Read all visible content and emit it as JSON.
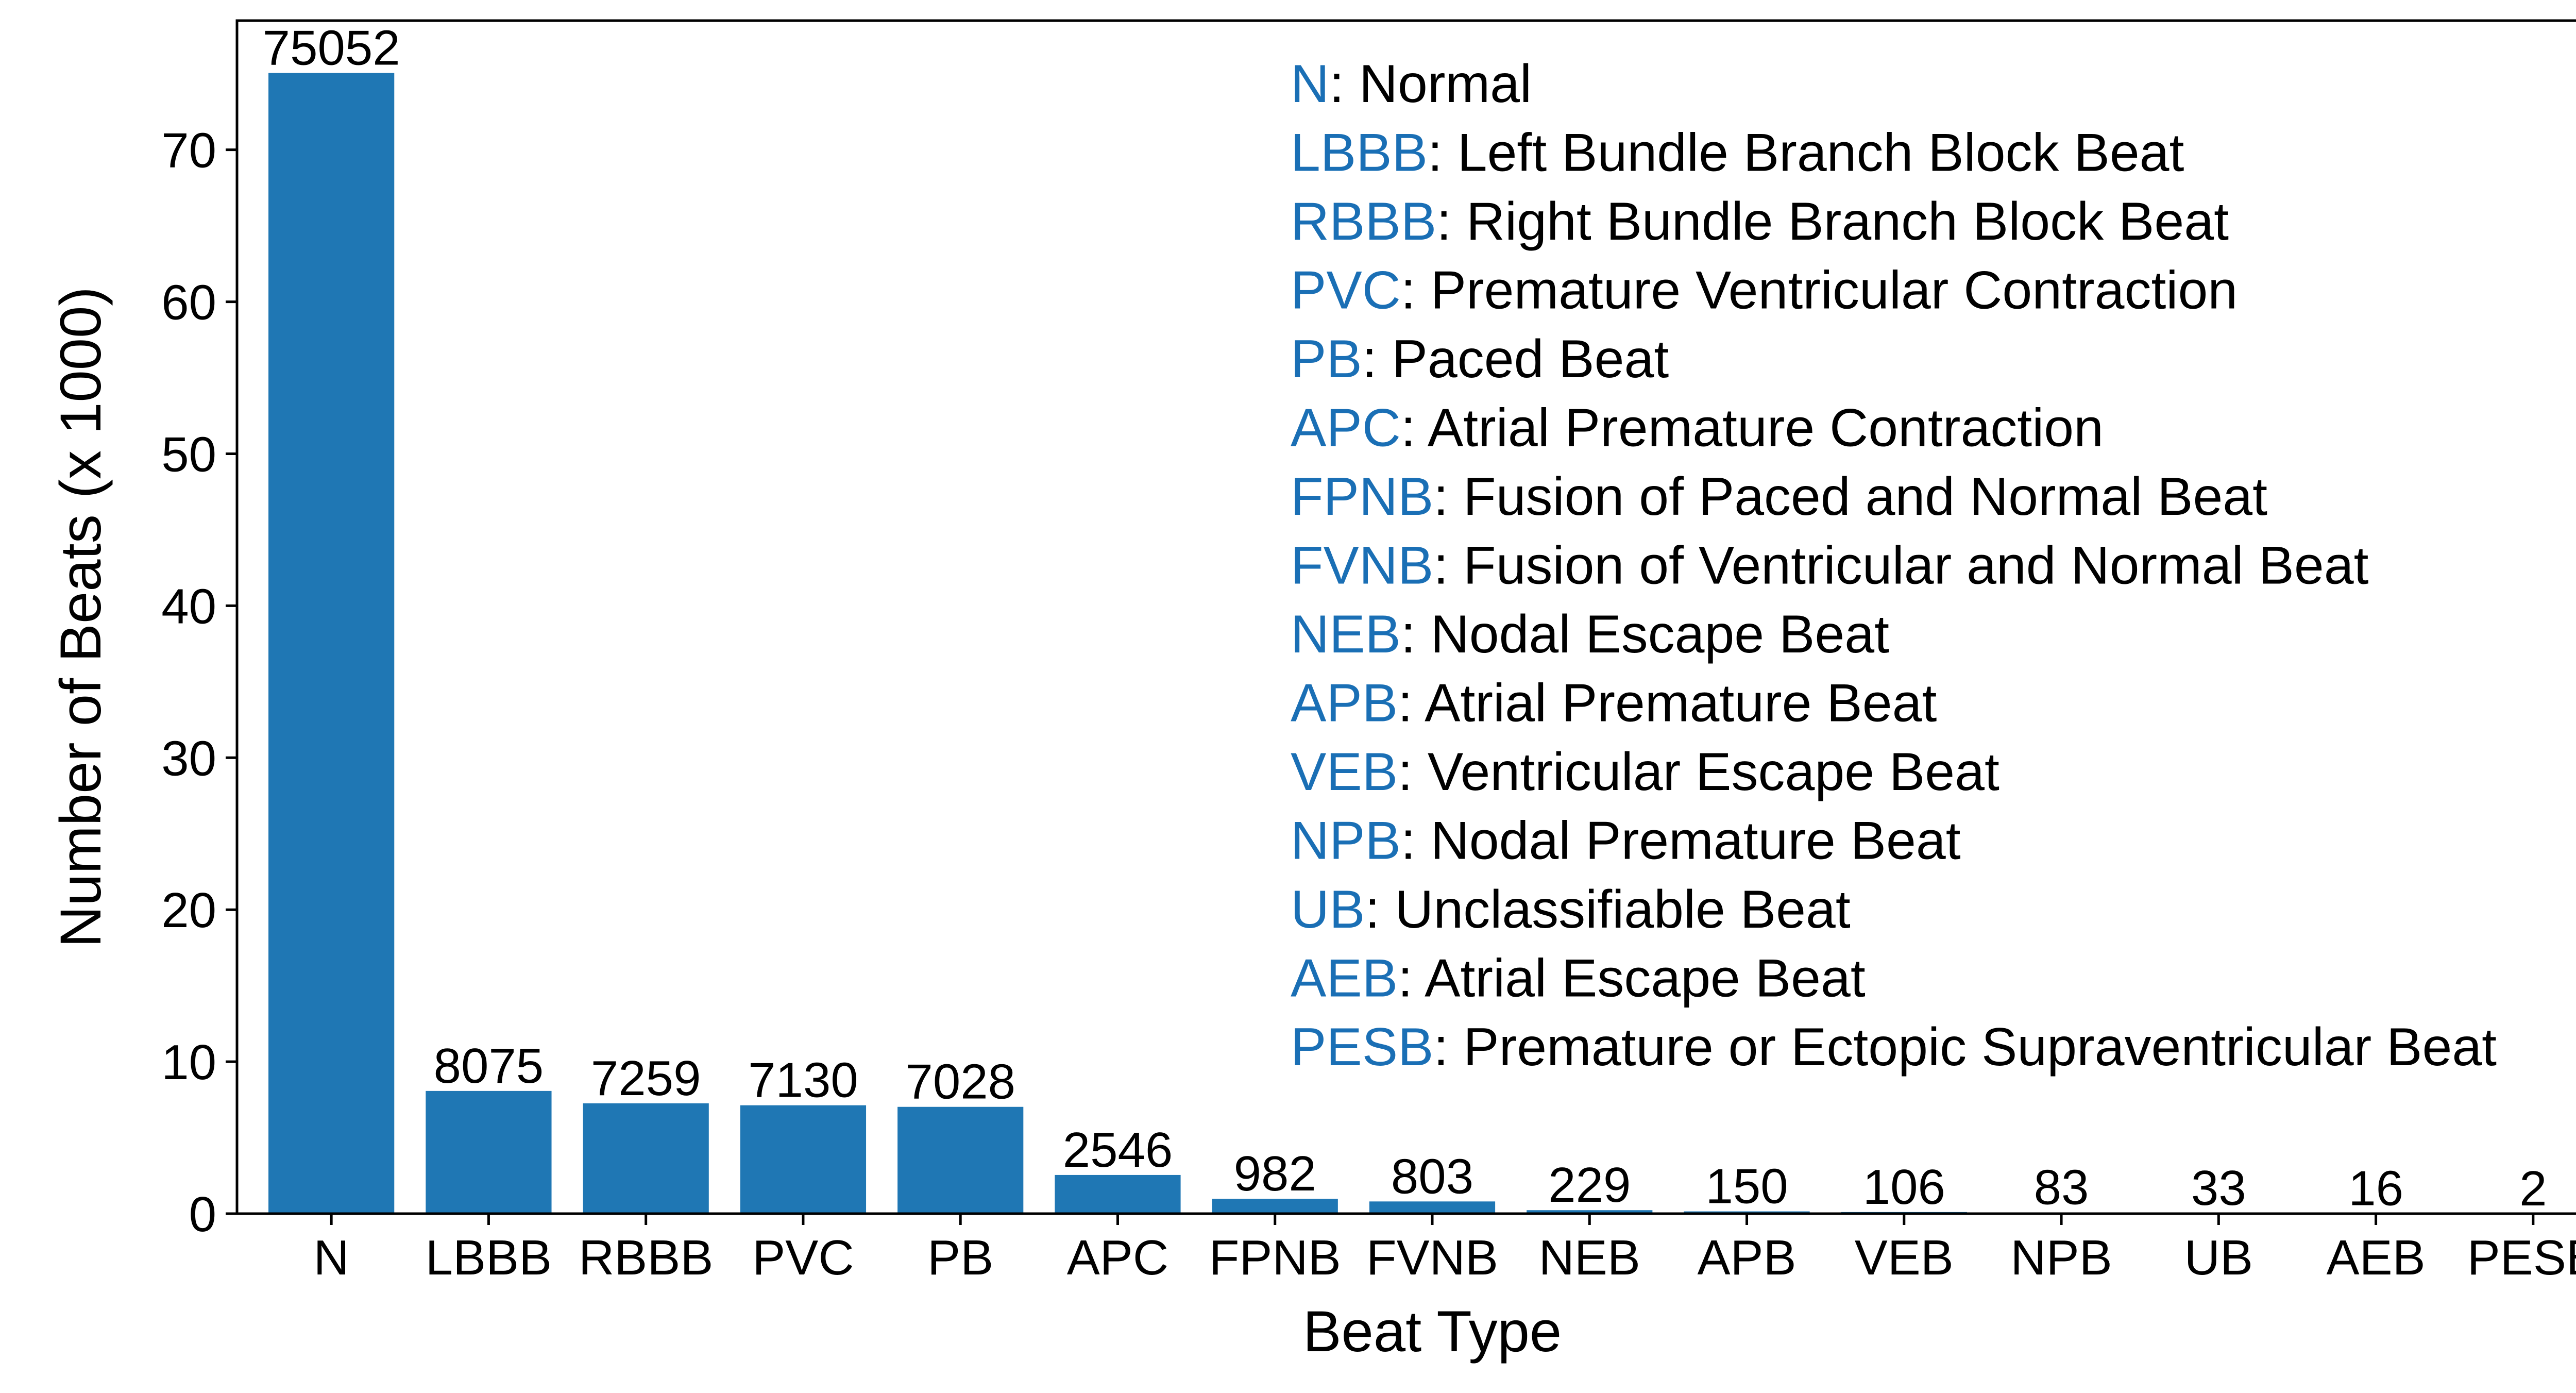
{
  "chart_data": {
    "type": "bar",
    "xlabel": "Beat Type",
    "ylabel": "Number of Beats (x 1000)",
    "ylim": [
      0,
      78.5
    ],
    "yticks": [
      0,
      10,
      20,
      30,
      40,
      50,
      60,
      70
    ],
    "grid": false,
    "bar_color": "#1f77b4",
    "categories": [
      "N",
      "LBBB",
      "RBBB",
      "PVC",
      "PB",
      "APC",
      "FPNB",
      "FVNB",
      "NEB",
      "APB",
      "VEB",
      "NPB",
      "UB",
      "AEB",
      "PESB"
    ],
    "values": [
      75052,
      8075,
      7259,
      7130,
      7028,
      2546,
      982,
      803,
      229,
      150,
      106,
      83,
      33,
      16,
      2
    ],
    "value_labels": [
      "75052",
      "8075",
      "7259",
      "7130",
      "7028",
      "2546",
      "982",
      "803",
      "229",
      "150",
      "106",
      "83",
      "33",
      "16",
      "2"
    ],
    "legend": {
      "placement": "top-right",
      "abbr_color": "#1a6fb5",
      "entries": [
        {
          "abbr": "N",
          "text": ": Normal"
        },
        {
          "abbr": "LBBB",
          "text": ": Left Bundle Branch Block Beat"
        },
        {
          "abbr": "RBBB",
          "text": ": Right Bundle Branch Block Beat"
        },
        {
          "abbr": "PVC",
          "text": ": Premature Ventricular Contraction"
        },
        {
          "abbr": "PB",
          "text": ": Paced Beat"
        },
        {
          "abbr": "APC",
          "text": ": Atrial Premature Contraction"
        },
        {
          "abbr": "FPNB",
          "text": ": Fusion of Paced and Normal Beat"
        },
        {
          "abbr": "FVNB",
          "text": ": Fusion of Ventricular and Normal Beat"
        },
        {
          "abbr": "NEB",
          "text": ": Nodal Escape Beat"
        },
        {
          "abbr": "APB",
          "text": ": Atrial Premature Beat"
        },
        {
          "abbr": "VEB",
          "text": ": Ventricular Escape Beat"
        },
        {
          "abbr": "NPB",
          "text": ": Nodal Premature Beat"
        },
        {
          "abbr": "UB",
          "text": ": Unclassifiable Beat"
        },
        {
          "abbr": "AEB",
          "text": ": Atrial Escape Beat"
        },
        {
          "abbr": "PESB",
          "text": ": Premature or Ectopic Supraventricular Beat"
        }
      ]
    }
  }
}
